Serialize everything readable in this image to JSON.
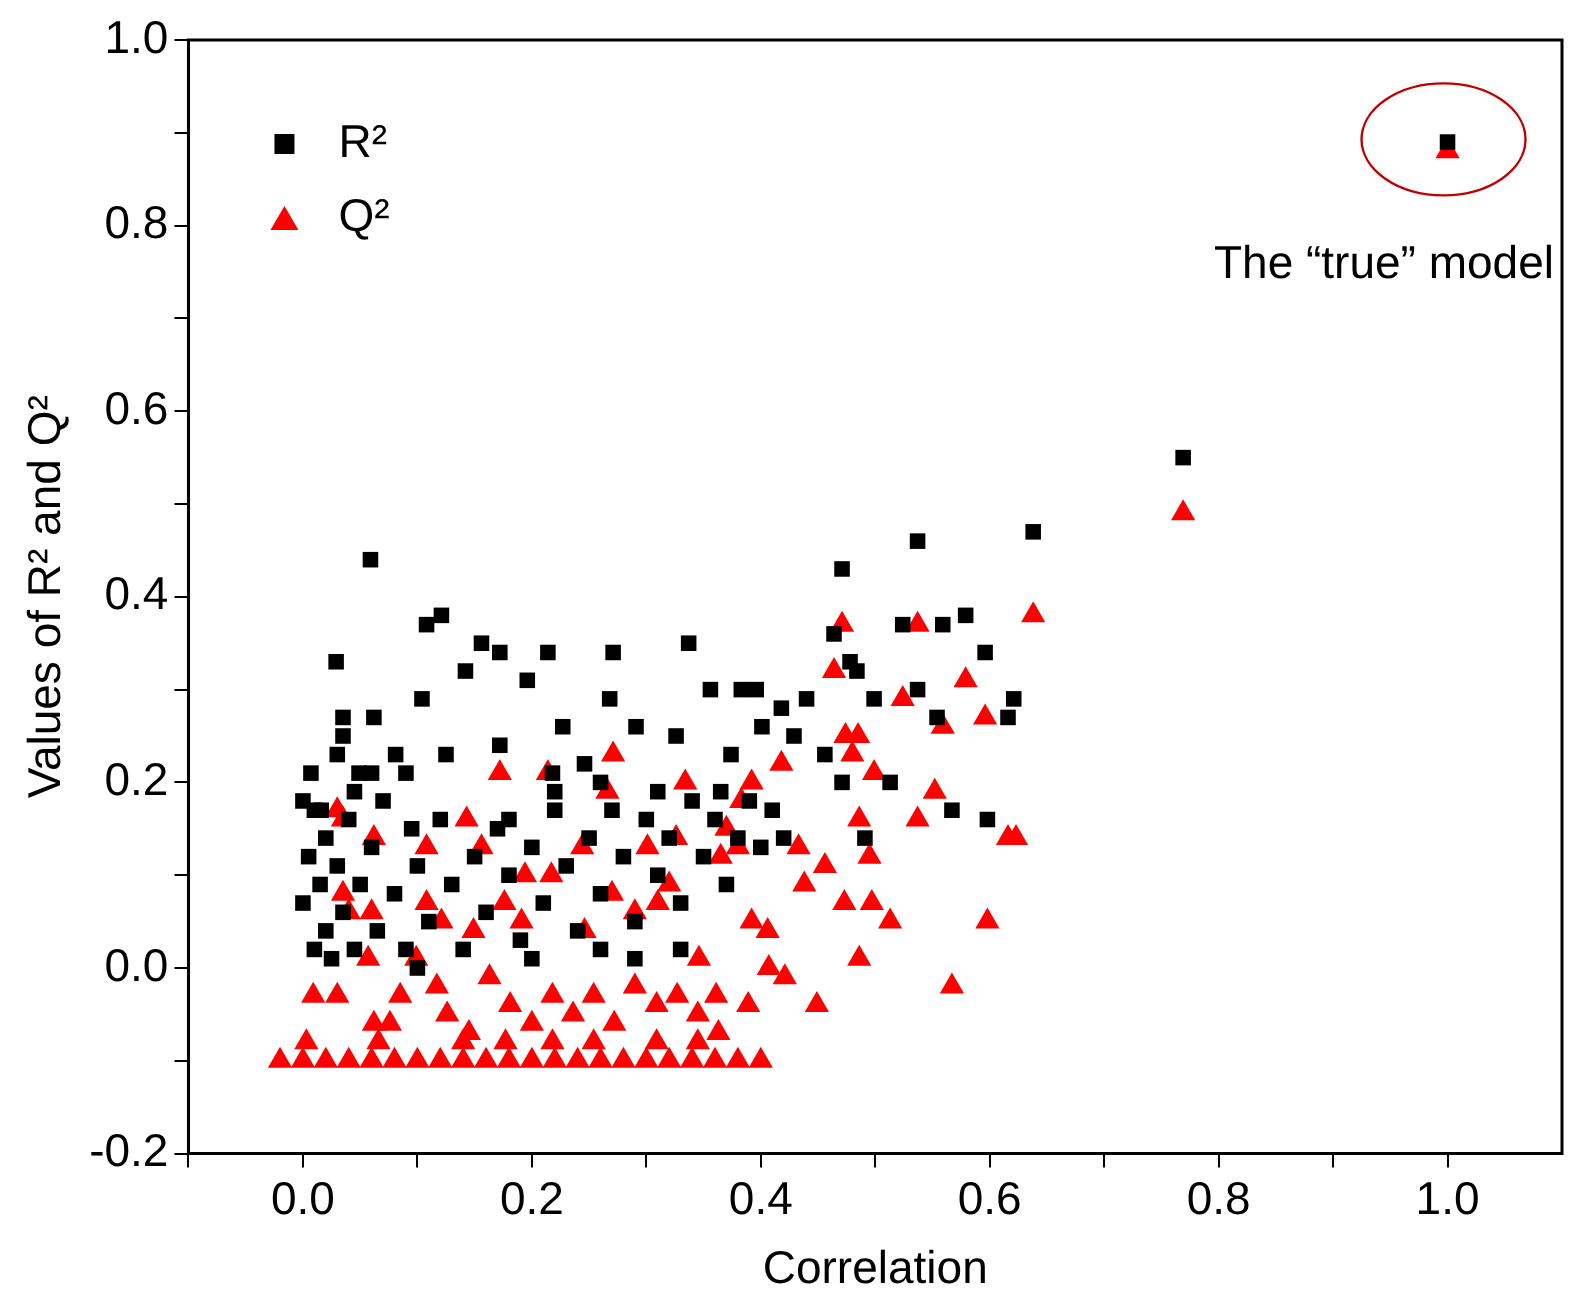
{
  "chart_data": {
    "type": "scatter",
    "xlabel": "Correlation",
    "ylabel": "Values of R² and Q²",
    "xlim": [
      -0.1,
      1.1
    ],
    "ylim": [
      -0.2,
      1.0
    ],
    "xticks": [
      {
        "value": -0.1,
        "label": null
      },
      {
        "value": 0,
        "label": "0.0"
      },
      {
        "value": 0.1,
        "label": null
      },
      {
        "value": 0.2,
        "label": "0.2"
      },
      {
        "value": 0.3,
        "label": null
      },
      {
        "value": 0.4,
        "label": "0.4"
      },
      {
        "value": 0.5,
        "label": null
      },
      {
        "value": 0.6,
        "label": "0.6"
      },
      {
        "value": 0.7,
        "label": null
      },
      {
        "value": 0.8,
        "label": "0.8"
      },
      {
        "value": 0.9,
        "label": null
      },
      {
        "value": 1.0,
        "label": "1.0"
      }
    ],
    "yticks": [
      {
        "value": -0.2,
        "label": "-0.2"
      },
      {
        "value": -0.1,
        "label": null
      },
      {
        "value": 0,
        "label": "0.0"
      },
      {
        "value": 0.1,
        "label": null
      },
      {
        "value": 0.2,
        "label": "0.2"
      },
      {
        "value": 0.3,
        "label": null
      },
      {
        "value": 0.4,
        "label": "0.4"
      },
      {
        "value": 0.5,
        "label": null
      },
      {
        "value": 0.6,
        "label": "0.6"
      },
      {
        "value": 0.7,
        "label": null
      },
      {
        "value": 0.8,
        "label": "0.8"
      },
      {
        "value": 0.9,
        "label": null
      },
      {
        "value": 1.0,
        "label": "1.0"
      }
    ],
    "grid": false,
    "legend": "top left",
    "annotations": [
      {
        "text": "The “true” model",
        "x": 1.0,
        "y": 0.88
      }
    ],
    "series": [
      {
        "name": "R²",
        "color": "#000000",
        "marker": "square",
        "x": [
          1.0,
          0.769,
          0.638,
          0.537,
          0.471,
          0.059,
          0.029,
          0.108,
          0.121,
          0.142,
          0.156,
          0.172,
          0.196,
          0.214,
          0.271,
          0.337,
          0.227,
          0.104,
          0.062,
          0.035,
          0.268,
          0.291,
          0.326,
          0.356,
          0.383,
          0.396,
          0.418,
          0.44,
          0.464,
          0.478,
          0.484,
          0.499,
          0.524,
          0.537,
          0.559,
          0.579,
          0.596,
          0.621,
          0.616,
          0.554,
          0.567,
          0.598,
          0.491,
          0.513,
          0.456,
          0.471,
          0.429,
          0.401,
          0.374,
          0.365,
          0.172,
          0.125,
          0.081,
          0.049,
          0.007,
          0.016,
          0.218,
          0.246,
          0.31,
          0.0,
          0.005,
          0.01,
          0.01,
          0.015,
          0.02,
          0.02,
          0.025,
          0.03,
          0.035,
          0.04,
          0.045,
          0.05,
          0.06,
          0.065,
          0.07,
          0.08,
          0.09,
          0.095,
          0.1,
          0.11,
          0.12,
          0.13,
          0.14,
          0.15,
          0.16,
          0.17,
          0.18,
          0.19,
          0.2,
          0.21,
          0.22,
          0.23,
          0.24,
          0.25,
          0.26,
          0.27,
          0.28,
          0.29,
          0.3,
          0.31,
          0.32,
          0.33,
          0.34,
          0.35,
          0.36,
          0.37,
          0.38,
          0.39,
          0.4,
          0.41,
          0.42,
          0.0,
          0.03,
          0.035,
          0.045,
          0.06,
          0.09,
          0.26,
          0.22,
          0.18,
          0.1,
          0.2,
          0.29,
          0.33,
          0.26
        ],
        "values": [
          0.89,
          0.55,
          0.47,
          0.46,
          0.43,
          0.44,
          0.33,
          0.37,
          0.38,
          0.32,
          0.35,
          0.34,
          0.31,
          0.34,
          0.34,
          0.35,
          0.26,
          0.29,
          0.27,
          0.27,
          0.29,
          0.26,
          0.25,
          0.3,
          0.3,
          0.3,
          0.28,
          0.29,
          0.36,
          0.33,
          0.32,
          0.29,
          0.37,
          0.3,
          0.37,
          0.38,
          0.34,
          0.29,
          0.27,
          0.27,
          0.17,
          0.16,
          0.14,
          0.2,
          0.23,
          0.2,
          0.25,
          0.26,
          0.23,
          0.19,
          0.24,
          0.23,
          0.23,
          0.21,
          0.21,
          0.17,
          0.21,
          0.22,
          0.19,
          0.07,
          0.12,
          0.02,
          0.17,
          0.09,
          0.04,
          0.14,
          0.01,
          0.11,
          0.06,
          0.16,
          0.02,
          0.09,
          0.13,
          0.04,
          0.18,
          0.08,
          0.02,
          0.15,
          0.11,
          0.05,
          0.16,
          0.09,
          0.02,
          0.12,
          0.06,
          0.15,
          0.1,
          0.03,
          0.13,
          0.07,
          0.17,
          0.11,
          0.04,
          0.14,
          0.08,
          0.17,
          0.12,
          0.05,
          0.16,
          0.1,
          0.14,
          0.07,
          0.18,
          0.12,
          0.16,
          0.09,
          0.14,
          0.18,
          0.13,
          0.17,
          0.14,
          0.18,
          0.23,
          0.25,
          0.19,
          0.21,
          0.21,
          0.2,
          0.19,
          0.16,
          0.0,
          0.01,
          0.01,
          0.02,
          0.02
        ]
      },
      {
        "name": "Q²",
        "color": "#ff0000",
        "marker": "triangle",
        "x": [
          1.0,
          0.769,
          0.638,
          0.471,
          0.537,
          0.464,
          0.474,
          0.485,
          0.48,
          0.524,
          0.579,
          0.559,
          0.596,
          0.499,
          0.552,
          0.537,
          0.486,
          0.495,
          0.616,
          0.623,
          0.473,
          0.497,
          0.513,
          0.598,
          0.486,
          0.567,
          0.449,
          0.407,
          0.421,
          0.389,
          0.361,
          0.346,
          0.392,
          0.406,
          0.433,
          0.438,
          0.456,
          0.418,
          0.392,
          0.383,
          0.37,
          0.38,
          0.365,
          0.271,
          0.214,
          0.172,
          0.334,
          0.03,
          0.035,
          0.062,
          0.143,
          0.156,
          0.108,
          0.266,
          0.301,
          0.326,
          0.244,
          0.217,
          0.194,
          0.176,
          0.108,
          0.121,
          0.035,
          0.04,
          0.06,
          0.057,
          0.099,
          0.149,
          0.191,
          0.246,
          0.27,
          0.29,
          0.31,
          0.32,
          0.009,
          0.03,
          0.085,
          0.062,
          0.076,
          0.117,
          0.126,
          0.145,
          0.163,
          0.181,
          0.2,
          0.218,
          0.236,
          0.254,
          0.272,
          0.29,
          0.309,
          0.327,
          0.345,
          0.363,
          0.003,
          0.066,
          0.14,
          0.177,
          0.218,
          0.254,
          0.309,
          0.345,
          -0.02,
          0.0,
          0.02,
          0.04,
          0.06,
          0.08,
          0.1,
          0.12,
          0.14,
          0.16,
          0.18,
          0.2,
          0.22,
          0.24,
          0.26,
          0.28,
          0.3,
          0.32,
          0.34,
          0.36,
          0.38,
          0.4
        ],
        "values": [
          0.88,
          0.49,
          0.38,
          0.37,
          0.37,
          0.32,
          0.25,
          0.25,
          0.23,
          0.29,
          0.31,
          0.26,
          0.27,
          0.21,
          0.19,
          0.16,
          0.16,
          0.12,
          0.14,
          0.14,
          0.07,
          0.07,
          0.05,
          0.05,
          0.01,
          -0.02,
          -0.04,
          0.0,
          -0.01,
          -0.04,
          -0.03,
          0.01,
          0.05,
          0.04,
          0.13,
          0.09,
          0.11,
          0.22,
          0.2,
          0.18,
          0.15,
          0.13,
          0.12,
          0.23,
          0.21,
          0.21,
          0.2,
          0.17,
          0.16,
          0.14,
          0.16,
          0.13,
          0.13,
          0.19,
          0.13,
          0.14,
          0.13,
          0.1,
          0.1,
          0.07,
          0.07,
          0.05,
          0.08,
          0.06,
          0.06,
          0.01,
          0.01,
          0.04,
          0.05,
          0.04,
          0.08,
          0.06,
          0.07,
          0.09,
          -0.03,
          -0.03,
          -0.03,
          -0.06,
          -0.06,
          -0.02,
          -0.05,
          -0.07,
          -0.01,
          -0.04,
          -0.06,
          -0.03,
          -0.05,
          -0.03,
          -0.06,
          -0.02,
          -0.04,
          -0.03,
          -0.05,
          -0.07,
          -0.08,
          -0.08,
          -0.08,
          -0.08,
          -0.08,
          -0.08,
          -0.08,
          -0.08,
          -0.1,
          -0.1,
          -0.1,
          -0.1,
          -0.1,
          -0.1,
          -0.1,
          -0.1,
          -0.1,
          -0.1,
          -0.1,
          -0.1,
          -0.1,
          -0.1,
          -0.1,
          -0.1,
          -0.1,
          -0.1,
          -0.1,
          -0.1,
          -0.1,
          -0.1
        ]
      }
    ]
  }
}
